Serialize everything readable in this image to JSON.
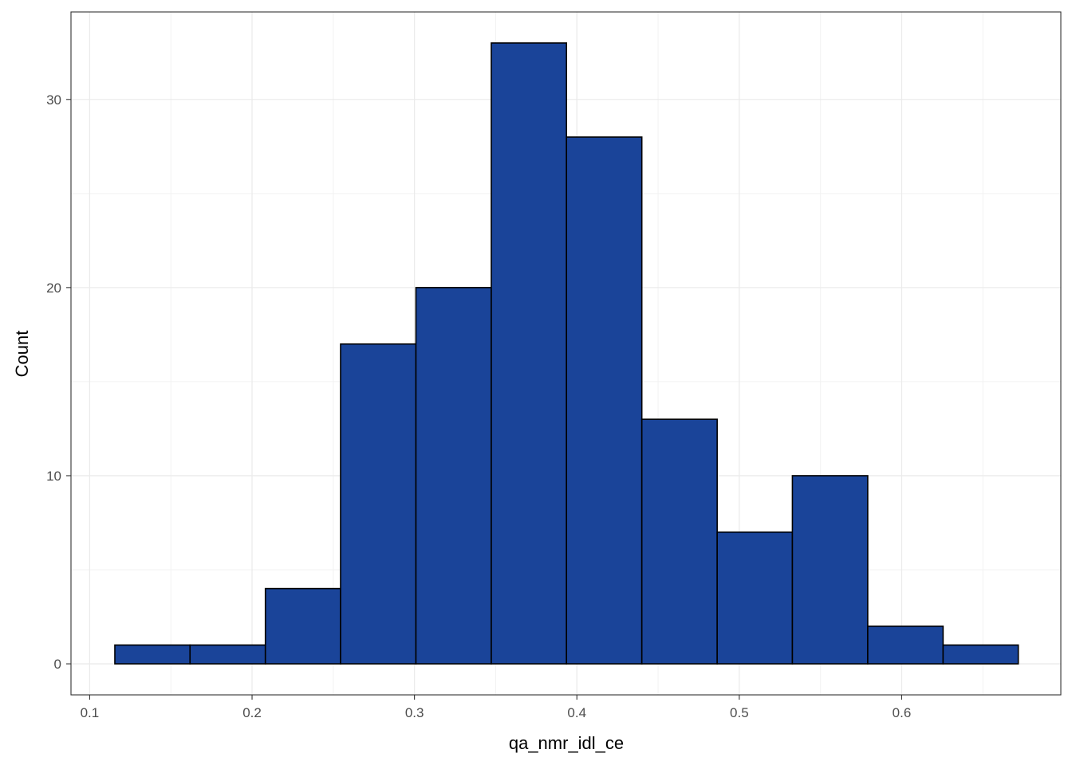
{
  "chart_data": {
    "type": "bar",
    "subtype": "histogram",
    "title": "",
    "xlabel": "qa_nmr_idl_ce",
    "ylabel": "Count",
    "xlim": [
      0.0885,
      0.698
    ],
    "ylim": [
      -1.65,
      34.65
    ],
    "x_ticks": [
      0.1,
      0.2,
      0.3,
      0.4,
      0.5,
      0.6
    ],
    "x_tick_labels": [
      "0.1",
      "0.2",
      "0.3",
      "0.4",
      "0.5",
      "0.6"
    ],
    "y_ticks": [
      0,
      10,
      20,
      30
    ],
    "y_tick_labels": [
      "0",
      "10",
      "20",
      "30"
    ],
    "bins": [
      {
        "x0": 0.1155,
        "x1": 0.1618,
        "count": 1
      },
      {
        "x0": 0.1618,
        "x1": 0.2082,
        "count": 1
      },
      {
        "x0": 0.2082,
        "x1": 0.2545,
        "count": 4
      },
      {
        "x0": 0.2545,
        "x1": 0.3009,
        "count": 17
      },
      {
        "x0": 0.3009,
        "x1": 0.3473,
        "count": 20
      },
      {
        "x0": 0.3473,
        "x1": 0.3936,
        "count": 33
      },
      {
        "x0": 0.3936,
        "x1": 0.44,
        "count": 28
      },
      {
        "x0": 0.44,
        "x1": 0.4864,
        "count": 13
      },
      {
        "x0": 0.4864,
        "x1": 0.5327,
        "count": 7
      },
      {
        "x0": 0.5327,
        "x1": 0.5791,
        "count": 10
      },
      {
        "x0": 0.5791,
        "x1": 0.6255,
        "count": 2
      },
      {
        "x0": 0.6255,
        "x1": 0.6718,
        "count": 1
      }
    ],
    "grid": true,
    "legend": "none",
    "colors": {
      "bar_fill": "#1a4499",
      "bar_stroke": "#000000",
      "grid_major": "#ebebeb",
      "grid_minor": "#f2f2f2",
      "panel_border": "#333333",
      "tick_text": "#4d4d4d",
      "axis_title": "#000000"
    }
  }
}
